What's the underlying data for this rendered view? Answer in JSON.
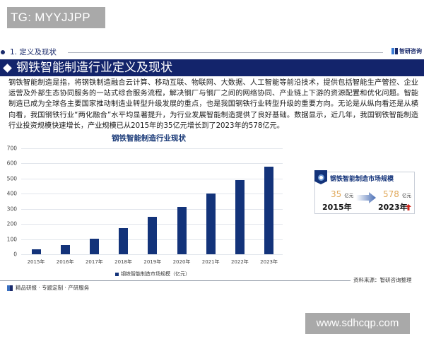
{
  "overlay": {
    "tg_badge": "TG: MYYJJPP",
    "url_badge": "www.sdhcqp.com"
  },
  "header": {
    "section_label": "1. 定义及现状",
    "brand_name": "智研咨询",
    "title": "钢铁智能制造行业定义及现状"
  },
  "body": {
    "paragraph": "钢铁智能制造是指，将钢铁制造融合云计算、移动互联、物联网、大数据、人工智能等前沿技术，提供包括智能生产管控、企业运营及外部生态协同服务的一站式综合服务流程，解决钢厂与钢厂之间的网络协同、产业链上下游的资源配置和优化问题。智能制造已成为全球各主要国家推动制造业转型升级发展的重点，也是我国钢铁行业转型升级的重要方向。无论是从纵向看还是从横向看，我国钢铁行业“两化融合”水平均显著提升，为行业发展智能制造提供了良好基础。数据显示，近几年，我国钢铁智能制造行业投资规模快速增长，产业规模已从2015年的35亿元增长到了2023年的578亿元。"
  },
  "chart_data": {
    "type": "bar",
    "title": "钢铁智能制造行业现状",
    "categories": [
      "2015年",
      "2016年",
      "2017年",
      "2018年",
      "2019年",
      "2020年",
      "2021年",
      "2022年",
      "2023年"
    ],
    "series": [
      {
        "name": "钢铁智能制造市场规模（亿元）",
        "values": [
          35,
          63,
          105,
          172,
          246,
          311,
          403,
          491,
          578
        ],
        "color": "#13337a"
      }
    ],
    "xlabel": "",
    "ylabel": "",
    "ylim": [
      0,
      700
    ],
    "yticks": [
      "0",
      "100",
      "200",
      "300",
      "400",
      "500",
      "600",
      "700"
    ],
    "grid": true,
    "legend_position": "bottom"
  },
  "market_box": {
    "title": "钢铁智能制造市场规模",
    "start_value": "35",
    "start_unit": "亿元",
    "start_year": "2015年",
    "end_value": "578",
    "end_unit": "亿元",
    "end_year": "2023年",
    "trend": "up"
  },
  "footer": {
    "tagline": "精品研报 · 专题定制 · 产研服务",
    "source": "资料来源：智研咨询整理"
  },
  "colors": {
    "brand_navy": "#13246b",
    "bar": "#13337a",
    "accent_gold": "#e0a85a",
    "trend_red": "#d0281e"
  }
}
